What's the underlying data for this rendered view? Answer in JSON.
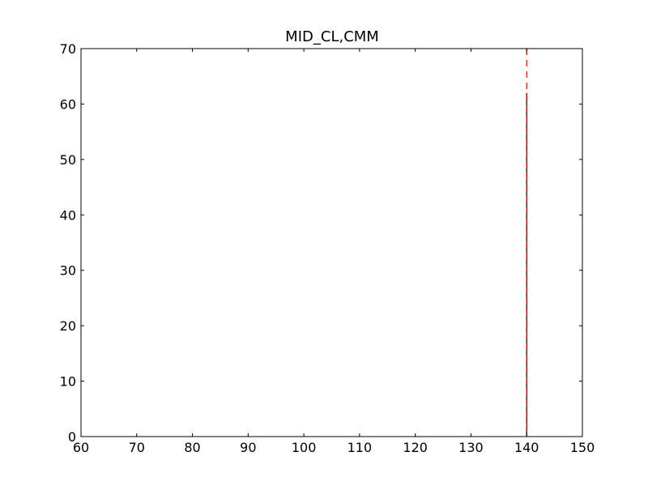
{
  "chart_data": {
    "type": "bar",
    "title": "MID_CL,CMM",
    "xlabel": "",
    "ylabel": "",
    "xlim": [
      60,
      150
    ],
    "ylim": [
      0,
      70
    ],
    "x_ticks": [
      60,
      70,
      80,
      90,
      100,
      110,
      120,
      130,
      140,
      150
    ],
    "y_ticks": [
      0,
      10,
      20,
      30,
      40,
      50,
      60,
      70
    ],
    "bars": [
      {
        "x": 140,
        "value": 62
      }
    ],
    "reference_lines": [
      {
        "orientation": "vertical",
        "x": 140,
        "style": "dashed",
        "color": "#ff0000"
      }
    ],
    "colors": {
      "bar_edge": "#000000",
      "reference_line": "#ff0000",
      "axes": "#000000"
    },
    "grid": false,
    "legend": "none"
  }
}
